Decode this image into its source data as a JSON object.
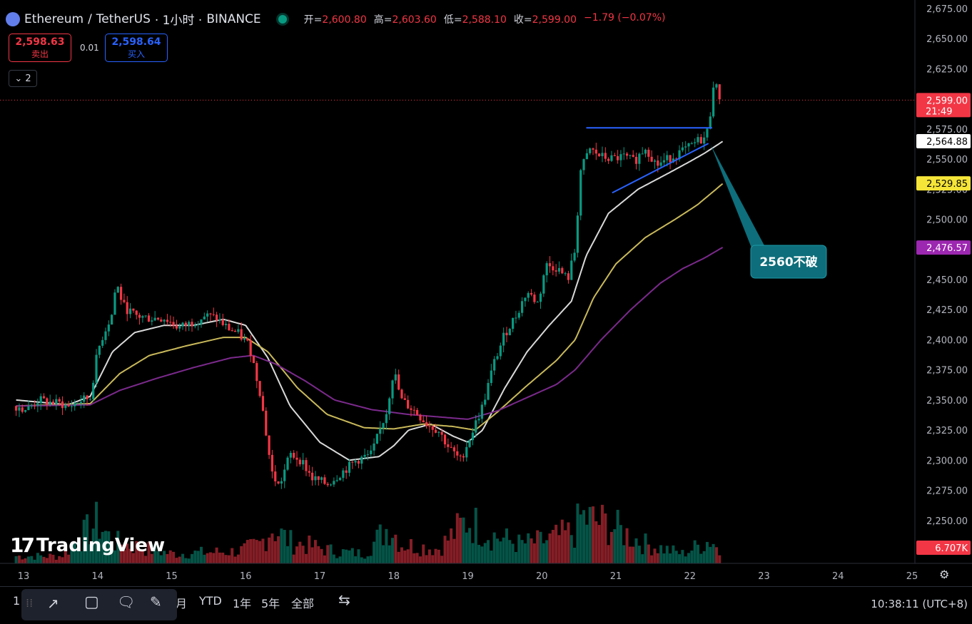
{
  "header": {
    "symbol": "Ethereum",
    "sep": "/",
    "quote": "TetherUS",
    "interval": "· 1小时 ·",
    "exchange": "BINANCE",
    "o_label": "开=",
    "o_val": "2,600.80",
    "h_label": "高=",
    "h_val": "2,603.60",
    "l_label": "低=",
    "l_val": "2,588.10",
    "c_label": "收=",
    "c_val": "2,599.00",
    "change": "−1.79 (−0.07%)"
  },
  "trade": {
    "sell_price": "2,598.63",
    "sell_label": "卖出",
    "spread": "0.01",
    "buy_price": "2,598.64",
    "buy_label": "买入"
  },
  "indicators_collapse": "2",
  "watermark": "TradingView",
  "toolbar": {
    "month": "月",
    "ytd": "YTD",
    "y1": "1年",
    "y5": "5年",
    "all": "全部",
    "first": "1"
  },
  "clock": "10:38:11 (UTC+8)",
  "colors": {
    "up": "#089981",
    "down": "#f23645",
    "ma_fast": "#d9d9d9",
    "ma_mid": "#c9b95a",
    "ma_slow": "#7b2a8c",
    "trendline": "#2962ff",
    "annotation": "#0e6e7b"
  },
  "chart_data": {
    "type": "candlestick",
    "ylim": [
      2225,
      2675
    ],
    "y_ticks": [
      "2,675.00",
      "2,650.00",
      "2,625.00",
      "2,600.00",
      "2,575.00",
      "2,550.00",
      "2,525.00",
      "2,500.00",
      "2,475.00",
      "2,450.00",
      "2,425.00",
      "2,400.00",
      "2,375.00",
      "2,350.00",
      "2,325.00",
      "2,300.00",
      "2,275.00",
      "2,250.00"
    ],
    "y_tick_values": [
      2675,
      2650,
      2625,
      2600,
      2575,
      2550,
      2525,
      2500,
      2475,
      2450,
      2425,
      2400,
      2375,
      2350,
      2325,
      2300,
      2275,
      2250
    ],
    "x_ticks": [
      "13",
      "14",
      "15",
      "16",
      "17",
      "18",
      "19",
      "20",
      "21",
      "22",
      "23",
      "24",
      "25"
    ],
    "x_tick_values": [
      13,
      14,
      15,
      16,
      17,
      18,
      19,
      20,
      21,
      22,
      23,
      24,
      25
    ],
    "xlim": [
      12.9,
      25.0
    ],
    "price_labels": [
      {
        "text": "2,599.00",
        "sub": "21:49",
        "value": 2599.0,
        "color": "#f23645"
      },
      {
        "text": "2,564.88",
        "value": 2564.88,
        "color": "#ffffff"
      },
      {
        "text": "2,529.85",
        "value": 2529.85,
        "color": "#f5e538"
      },
      {
        "text": "2,476.57",
        "value": 2476.57,
        "color": "#9c27b0"
      }
    ],
    "volume_label": "6.707K",
    "annotation": "2560不破",
    "anchors": {
      "close": [
        [
          12.9,
          2345
        ],
        [
          13.05,
          2342
        ],
        [
          13.2,
          2350
        ],
        [
          13.35,
          2348
        ],
        [
          13.5,
          2347
        ],
        [
          13.6,
          2344
        ],
        [
          13.75,
          2349
        ],
        [
          13.9,
          2352
        ],
        [
          14.0,
          2390
        ],
        [
          14.08,
          2405
        ],
        [
          14.2,
          2422
        ],
        [
          14.25,
          2448
        ],
        [
          14.35,
          2428
        ],
        [
          14.5,
          2420
        ],
        [
          14.7,
          2418
        ],
        [
          14.9,
          2418
        ],
        [
          15.1,
          2410
        ],
        [
          15.3,
          2415
        ],
        [
          15.45,
          2420
        ],
        [
          15.6,
          2418
        ],
        [
          15.75,
          2410
        ],
        [
          15.9,
          2405
        ],
        [
          16.05,
          2395
        ],
        [
          16.2,
          2355
        ],
        [
          16.35,
          2290
        ],
        [
          16.45,
          2278
        ],
        [
          16.6,
          2305
        ],
        [
          16.75,
          2300
        ],
        [
          16.9,
          2285
        ],
        [
          17.1,
          2280
        ],
        [
          17.3,
          2290
        ],
        [
          17.5,
          2300
        ],
        [
          17.7,
          2305
        ],
        [
          17.9,
          2340
        ],
        [
          18.0,
          2375
        ],
        [
          18.1,
          2350
        ],
        [
          18.3,
          2340
        ],
        [
          18.45,
          2330
        ],
        [
          18.6,
          2325
        ],
        [
          18.75,
          2310
        ],
        [
          18.9,
          2300
        ],
        [
          19.05,
          2322
        ],
        [
          19.2,
          2345
        ],
        [
          19.35,
          2380
        ],
        [
          19.5,
          2405
        ],
        [
          19.65,
          2420
        ],
        [
          19.8,
          2440
        ],
        [
          19.95,
          2430
        ],
        [
          20.05,
          2462
        ],
        [
          20.2,
          2460
        ],
        [
          20.35,
          2450
        ],
        [
          20.45,
          2475
        ],
        [
          20.52,
          2540
        ],
        [
          20.65,
          2558
        ],
        [
          20.8,
          2552
        ],
        [
          20.95,
          2550
        ],
        [
          21.1,
          2552
        ],
        [
          21.25,
          2548
        ],
        [
          21.4,
          2560
        ],
        [
          21.55,
          2545
        ],
        [
          21.7,
          2550
        ],
        [
          21.85,
          2555
        ],
        [
          22.0,
          2560
        ],
        [
          22.1,
          2565
        ],
        [
          22.22,
          2568
        ],
        [
          22.28,
          2590
        ],
        [
          22.32,
          2615
        ],
        [
          22.38,
          2605
        ],
        [
          22.42,
          2599
        ]
      ],
      "ma_fast": [
        [
          12.9,
          2350
        ],
        [
          13.6,
          2346
        ],
        [
          13.9,
          2353
        ],
        [
          14.2,
          2390
        ],
        [
          14.5,
          2406
        ],
        [
          14.9,
          2412
        ],
        [
          15.3,
          2412
        ],
        [
          15.7,
          2417
        ],
        [
          16.0,
          2412
        ],
        [
          16.3,
          2385
        ],
        [
          16.6,
          2345
        ],
        [
          17.0,
          2315
        ],
        [
          17.4,
          2300
        ],
        [
          17.8,
          2303
        ],
        [
          18.0,
          2312
        ],
        [
          18.2,
          2325
        ],
        [
          18.5,
          2330
        ],
        [
          18.8,
          2320
        ],
        [
          19.0,
          2315
        ],
        [
          19.2,
          2325
        ],
        [
          19.5,
          2360
        ],
        [
          19.8,
          2390
        ],
        [
          20.1,
          2412
        ],
        [
          20.4,
          2432
        ],
        [
          20.6,
          2470
        ],
        [
          20.9,
          2505
        ],
        [
          21.3,
          2525
        ],
        [
          21.7,
          2538
        ],
        [
          22.0,
          2548
        ],
        [
          22.2,
          2555
        ],
        [
          22.45,
          2565
        ]
      ],
      "ma_mid": [
        [
          12.9,
          2345
        ],
        [
          13.9,
          2347
        ],
        [
          14.3,
          2372
        ],
        [
          14.7,
          2387
        ],
        [
          15.2,
          2395
        ],
        [
          15.7,
          2402
        ],
        [
          16.0,
          2402
        ],
        [
          16.3,
          2390
        ],
        [
          16.7,
          2360
        ],
        [
          17.1,
          2338
        ],
        [
          17.6,
          2327
        ],
        [
          18.0,
          2326
        ],
        [
          18.4,
          2330
        ],
        [
          18.8,
          2328
        ],
        [
          19.1,
          2325
        ],
        [
          19.4,
          2340
        ],
        [
          19.8,
          2362
        ],
        [
          20.2,
          2383
        ],
        [
          20.45,
          2400
        ],
        [
          20.7,
          2435
        ],
        [
          21.0,
          2463
        ],
        [
          21.4,
          2485
        ],
        [
          21.8,
          2500
        ],
        [
          22.1,
          2512
        ],
        [
          22.45,
          2530
        ]
      ],
      "ma_slow": [
        [
          12.9,
          2345
        ],
        [
          13.9,
          2346
        ],
        [
          14.3,
          2358
        ],
        [
          14.8,
          2368
        ],
        [
          15.3,
          2377
        ],
        [
          15.8,
          2385
        ],
        [
          16.1,
          2387
        ],
        [
          16.4,
          2380
        ],
        [
          16.8,
          2366
        ],
        [
          17.2,
          2350
        ],
        [
          17.7,
          2342
        ],
        [
          18.2,
          2338
        ],
        [
          18.6,
          2336
        ],
        [
          19.0,
          2334
        ],
        [
          19.4,
          2341
        ],
        [
          19.8,
          2352
        ],
        [
          20.2,
          2363
        ],
        [
          20.45,
          2375
        ],
        [
          20.8,
          2400
        ],
        [
          21.2,
          2425
        ],
        [
          21.6,
          2447
        ],
        [
          21.9,
          2459
        ],
        [
          22.2,
          2468
        ],
        [
          22.45,
          2477
        ]
      ],
      "volume": [
        [
          12.9,
          0.3
        ],
        [
          13.5,
          0.3
        ],
        [
          14.0,
          1.7
        ],
        [
          14.2,
          0.9
        ],
        [
          15.0,
          0.4
        ],
        [
          15.9,
          0.5
        ],
        [
          16.2,
          0.8
        ],
        [
          16.35,
          1.5
        ],
        [
          16.6,
          0.9
        ],
        [
          17.2,
          0.5
        ],
        [
          17.6,
          0.4
        ],
        [
          17.95,
          1.6
        ],
        [
          18.1,
          0.8
        ],
        [
          18.6,
          0.6
        ],
        [
          19.0,
          1.8
        ],
        [
          19.3,
          1.2
        ],
        [
          19.7,
          0.8
        ],
        [
          20.0,
          0.9
        ],
        [
          20.45,
          1.3
        ],
        [
          20.52,
          1.9
        ],
        [
          20.9,
          1.6
        ],
        [
          21.4,
          0.8
        ],
        [
          21.9,
          0.4
        ],
        [
          22.3,
          1.0
        ],
        [
          22.42,
          0.3
        ]
      ]
    },
    "drawings": {
      "horizontal": {
        "x1": 20.6,
        "x2": 22.3,
        "y": 2576
      },
      "ascending": {
        "x1": 20.95,
        "y1": 2522,
        "x2": 22.25,
        "y2": 2563
      },
      "callout_target": {
        "x": 22.28,
        "y": 2562
      }
    }
  }
}
